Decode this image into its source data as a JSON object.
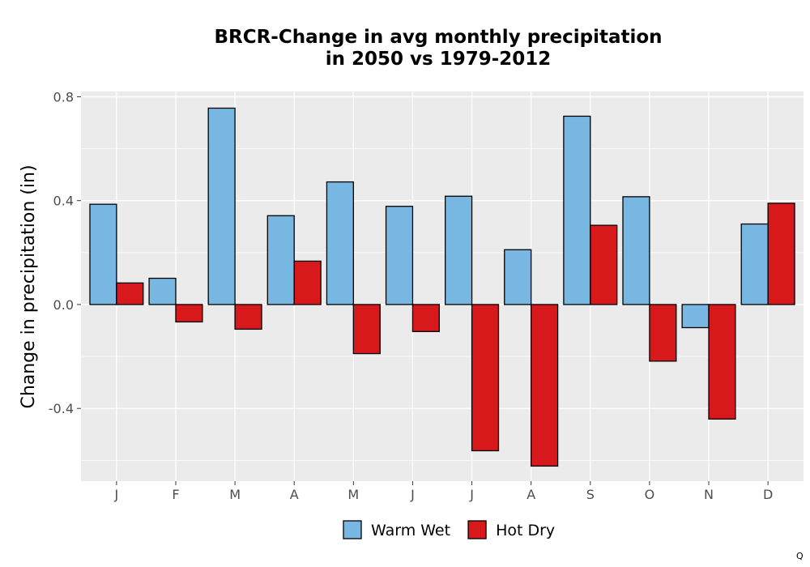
{
  "chart_data": {
    "type": "bar",
    "title": "BRCR-Change in avg monthly precipitation\nin 2050 vs 1979-2012",
    "xlabel": "",
    "ylabel": "Change in precipitation (in)",
    "categories": [
      "J",
      "F",
      "M",
      "A",
      "M",
      "J",
      "J",
      "A",
      "S",
      "O",
      "N",
      "D"
    ],
    "series": [
      {
        "name": "Warm Wet",
        "color": "#77b7e2",
        "values": [
          0.386,
          0.101,
          0.756,
          0.342,
          0.472,
          0.378,
          0.417,
          0.211,
          0.725,
          0.415,
          -0.089,
          0.31
        ]
      },
      {
        "name": "Hot Dry",
        "color": "#d7191c",
        "values": [
          0.083,
          -0.067,
          -0.095,
          0.167,
          -0.189,
          -0.104,
          -0.563,
          -0.622,
          0.305,
          -0.218,
          -0.441,
          0.39
        ]
      }
    ],
    "ylim": [
      -0.68,
      0.82
    ],
    "yticks": [
      0.8,
      0.4,
      0.0,
      -0.4
    ],
    "ytick_labels": [
      "0.8",
      "0.4",
      "0.0",
      "-0.4"
    ],
    "grid": true,
    "legend_position": "bottom",
    "panel_background": "#ebebeb",
    "footnote": "Q"
  }
}
